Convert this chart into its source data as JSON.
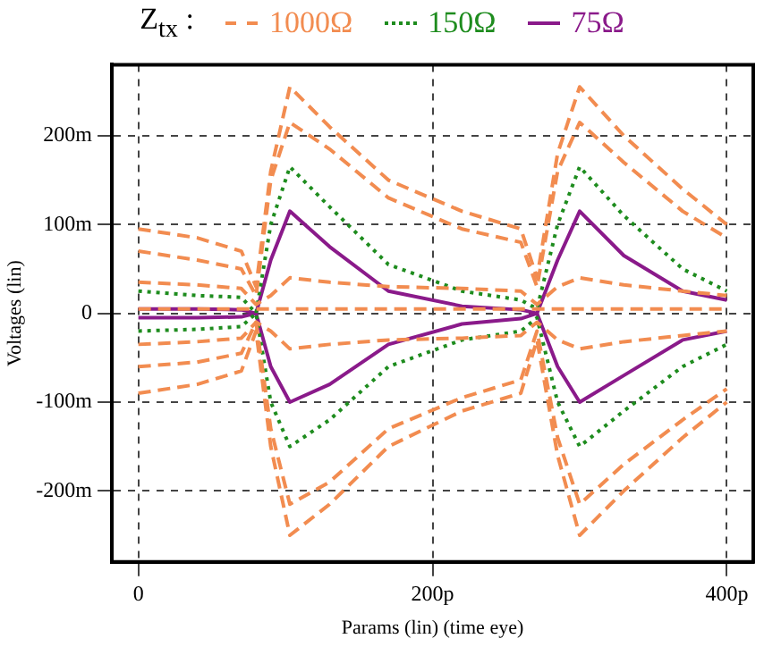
{
  "chart_data": {
    "type": "line",
    "legend_title": "Z$_{tx}$ :",
    "legend": "top",
    "xlabel": "Params (lin) (time eye)",
    "ylabel": "Voltages (lin)",
    "x": [
      0,
      40,
      70,
      80,
      90,
      103,
      130,
      170,
      220,
      260,
      271,
      285,
      300,
      330,
      370,
      400
    ],
    "xlim": [
      -18,
      418
    ],
    "xticks": [
      0,
      {
        "value": 200,
        "label": "200p"
      },
      {
        "value": 400,
        "label": "400p"
      }
    ],
    "ylim": [
      -280,
      280
    ],
    "yticks": [
      {
        "value": -200,
        "label": "-200m"
      },
      {
        "value": -100,
        "label": "-100m"
      },
      0,
      {
        "value": 100,
        "label": "100m"
      },
      {
        "value": 200,
        "label": "200m"
      }
    ],
    "grid": true,
    "marker": "none",
    "series": [
      {
        "name": "1000Ω",
        "color": "#f28c50",
        "line_style": "dashed",
        "values": [
          95,
          85,
          70,
          30,
          160,
          255,
          210,
          150,
          115,
          95,
          40,
          180,
          255,
          200,
          140,
          100
        ]
      },
      {
        "color": "#f28c50",
        "line_style": "dashed",
        "values": [
          70,
          60,
          50,
          20,
          150,
          215,
          185,
          130,
          95,
          80,
          30,
          160,
          215,
          170,
          115,
          85
        ]
      },
      {
        "color": "#f28c50",
        "line_style": "dashed",
        "values": [
          -90,
          -80,
          -65,
          -20,
          -150,
          -250,
          -215,
          -150,
          -110,
          -90,
          -30,
          -160,
          -250,
          -200,
          -140,
          -100
        ]
      },
      {
        "color": "#f28c50",
        "line_style": "dashed",
        "values": [
          -60,
          -55,
          -45,
          -10,
          -130,
          -215,
          -190,
          -130,
          -95,
          -75,
          -20,
          -140,
          -215,
          -170,
          -120,
          -85
        ]
      },
      {
        "color": "#f28c50",
        "line_style": "dashed",
        "values": [
          35,
          32,
          28,
          10,
          20,
          40,
          35,
          30,
          28,
          25,
          10,
          30,
          40,
          32,
          25,
          20
        ]
      },
      {
        "color": "#f28c50",
        "line_style": "dashed",
        "values": [
          -35,
          -32,
          -28,
          -10,
          -20,
          -40,
          -35,
          -30,
          -28,
          -25,
          -10,
          -30,
          -40,
          -32,
          -25,
          -20
        ]
      },
      {
        "color": "#f28c50",
        "line_style": "dashed",
        "values": [
          5,
          5,
          5,
          5,
          5,
          5,
          5,
          5,
          5,
          5,
          5,
          5,
          5,
          5,
          5,
          5
        ]
      },
      {
        "name": "150Ω",
        "color": "#1e8c1e",
        "line_style": "dotted",
        "values": [
          25,
          20,
          18,
          0,
          100,
          165,
          120,
          55,
          25,
          15,
          5,
          100,
          165,
          110,
          50,
          25
        ]
      },
      {
        "color": "#1e8c1e",
        "line_style": "dotted",
        "values": [
          -20,
          -18,
          -15,
          0,
          -100,
          -150,
          -120,
          -60,
          -30,
          -20,
          -5,
          -100,
          -150,
          -110,
          -60,
          -35
        ]
      },
      {
        "name": "75Ω",
        "color": "#8a1a8a",
        "line_style": "solid",
        "values": [
          5,
          5,
          4,
          0,
          60,
          115,
          75,
          25,
          8,
          4,
          0,
          60,
          115,
          65,
          25,
          15
        ]
      },
      {
        "color": "#8a1a8a",
        "line_style": "solid",
        "values": [
          -5,
          -5,
          -4,
          0,
          -60,
          -100,
          -80,
          -35,
          -12,
          -6,
          0,
          -60,
          -100,
          -70,
          -30,
          -20
        ]
      }
    ]
  }
}
